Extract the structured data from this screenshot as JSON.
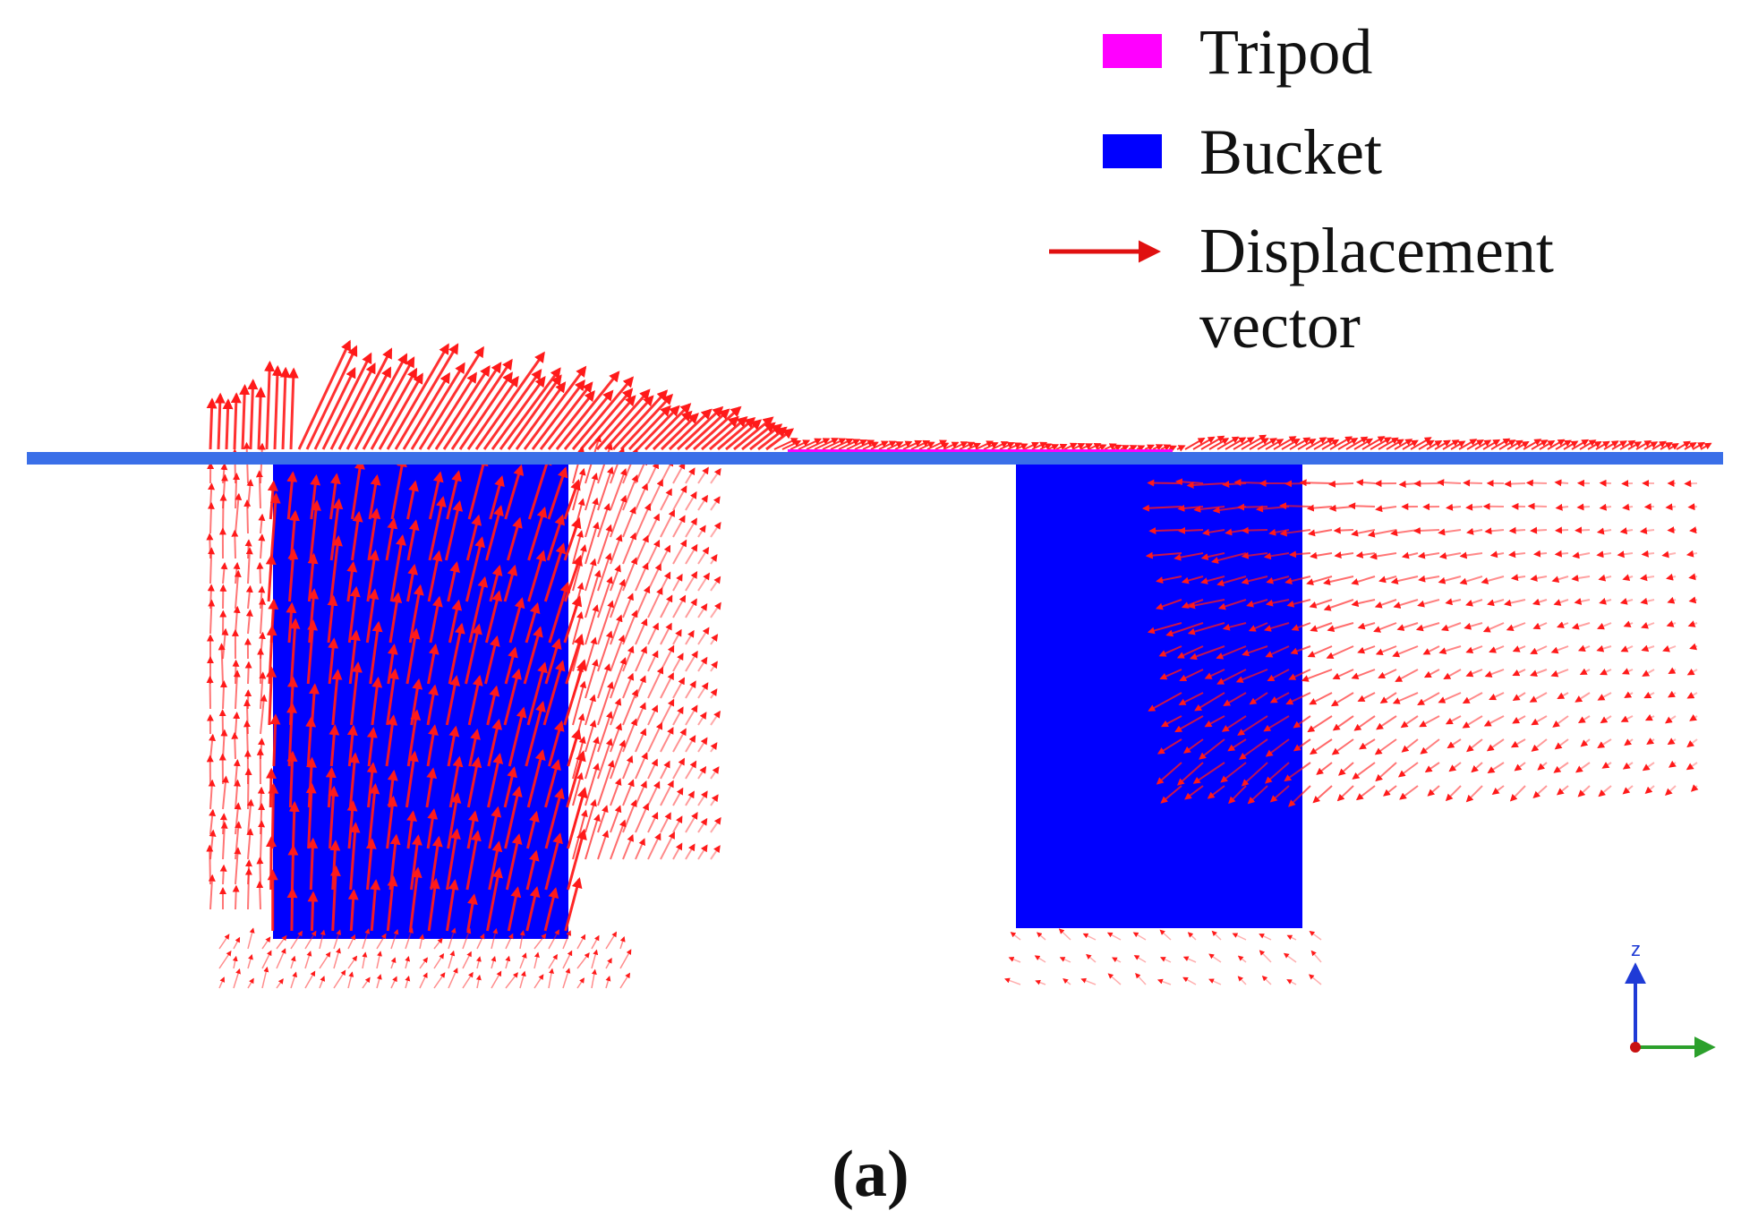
{
  "legend": {
    "items": [
      {
        "label": "Tripod",
        "color": "#ff00ff",
        "marker": "swatch"
      },
      {
        "label": "Bucket",
        "color": "#0000ff",
        "marker": "swatch"
      },
      {
        "label_lines": [
          "Displacement",
          "vector"
        ],
        "color": "#e01010",
        "marker": "arrow"
      }
    ]
  },
  "axes_triad": {
    "z_label": "z",
    "z_color": "#1f3bd6",
    "y_color": "#2ca02c",
    "x_color": "#c81010"
  },
  "colors": {
    "ground_line": "#3a6fe8",
    "bucket": "#0000ff",
    "tripod": "#ff00ff",
    "vector": "#ff1a1a"
  },
  "caption": {
    "open": "(",
    "letter": "a",
    "close": ")"
  }
}
